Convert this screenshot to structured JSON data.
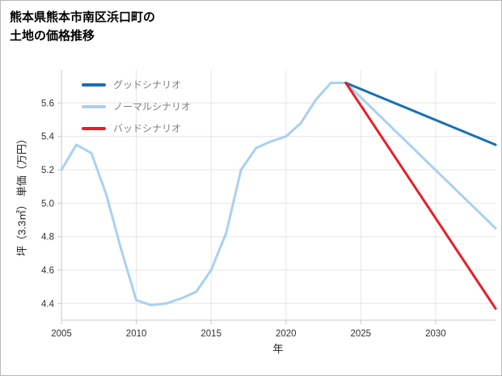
{
  "page": {
    "title_lines": [
      "熊本県熊本市南区浜口町の",
      "土地の価格推移"
    ]
  },
  "chart_data": {
    "type": "line",
    "title": "熊本県熊本市南区浜口町の土地の価格推移",
    "xlabel": "年",
    "ylabel": "坪（3.3㎡） 単価（万円）",
    "xlim": [
      2005,
      2034
    ],
    "ylim": [
      4.3,
      5.8
    ],
    "xticks": [
      2005,
      2010,
      2015,
      2020,
      2025,
      2030
    ],
    "yticks": [
      4.4,
      4.6,
      4.8,
      5.0,
      5.2,
      5.4,
      5.6
    ],
    "grid": true,
    "legend_position": "top-left",
    "background": "#ffffff",
    "grid_color": "#e6e6e6",
    "axis_color": "#c9c9c9",
    "draw_order": [
      1,
      0,
      2
    ],
    "series": [
      {
        "name": "グッドシナリオ",
        "color": "#1670b8",
        "x": [
          2024,
          2034
        ],
        "y": [
          5.72,
          5.35
        ]
      },
      {
        "name": "ノーマルシナリオ",
        "color": "#a8d1f2",
        "x": [
          2005,
          2006,
          2007,
          2008,
          2009,
          2010,
          2011,
          2012,
          2013,
          2014,
          2015,
          2016,
          2017,
          2018,
          2019,
          2020,
          2021,
          2022,
          2023,
          2024,
          2034
        ],
        "y": [
          5.2,
          5.35,
          5.3,
          5.05,
          4.72,
          4.42,
          4.39,
          4.4,
          4.43,
          4.47,
          4.6,
          4.82,
          5.2,
          5.33,
          5.37,
          5.4,
          5.48,
          5.62,
          5.72,
          5.72,
          4.85
        ]
      },
      {
        "name": "バッドシナリオ",
        "color": "#ea1e25",
        "x": [
          2024,
          2034
        ],
        "y": [
          5.72,
          4.37
        ]
      }
    ]
  }
}
